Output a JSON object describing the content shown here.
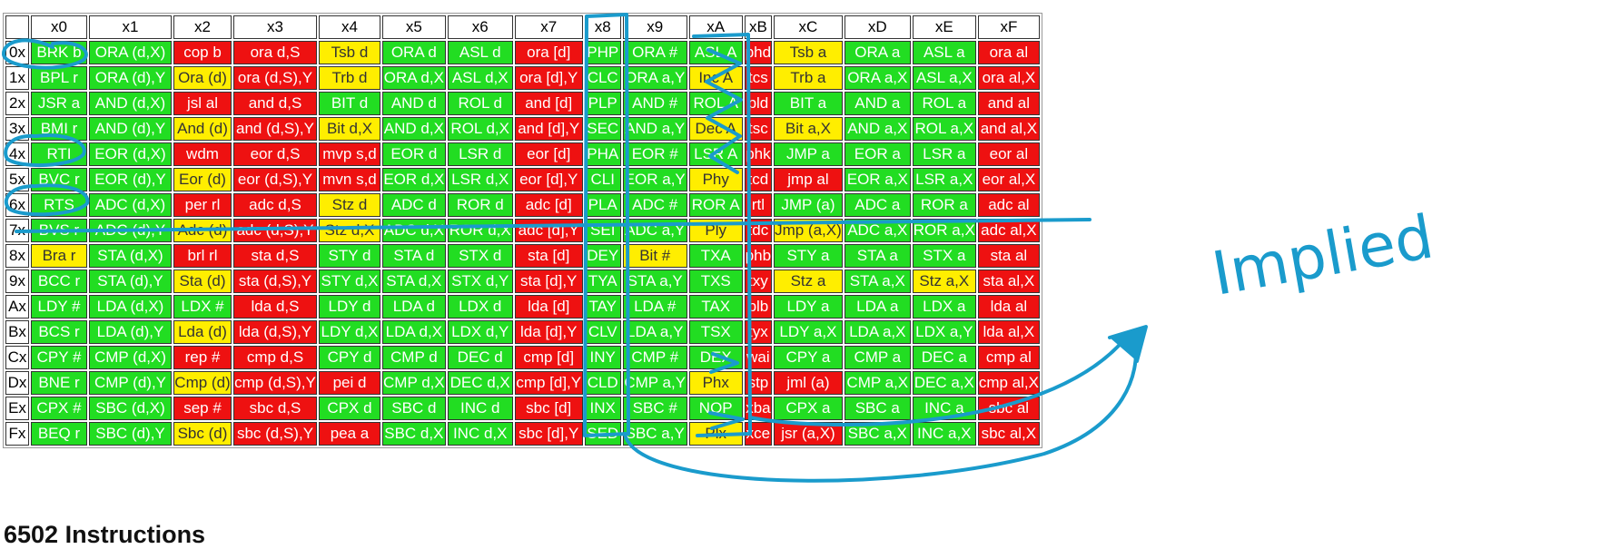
{
  "header": [
    "",
    "x0",
    "x1",
    "x2",
    "x3",
    "x4",
    "x5",
    "x6",
    "x7",
    "x8",
    "x9",
    "xA",
    "xB",
    "xC",
    "xD",
    "xE",
    "xF"
  ],
  "colors": {
    "green": "#22dd22",
    "yellow": "#ffee00",
    "red": "#ee1111",
    "annotation_ink": "#1a9bcc"
  },
  "rows": [
    {
      "label": "0x",
      "cells": [
        [
          "BRK b",
          "g"
        ],
        [
          "ORA (d,X)",
          "g"
        ],
        [
          "cop b",
          "r"
        ],
        [
          "ora d,S",
          "r"
        ],
        [
          "Tsb d",
          "y"
        ],
        [
          "ORA d",
          "g"
        ],
        [
          "ASL d",
          "g"
        ],
        [
          "ora [d]",
          "r"
        ],
        [
          "PHP",
          "g"
        ],
        [
          "ORA #",
          "g"
        ],
        [
          "ASL A",
          "g"
        ],
        [
          "phd",
          "r"
        ],
        [
          "Tsb a",
          "y"
        ],
        [
          "ORA a",
          "g"
        ],
        [
          "ASL a",
          "g"
        ],
        [
          "ora al",
          "r"
        ]
      ]
    },
    {
      "label": "1x",
      "cells": [
        [
          "BPL r",
          "g"
        ],
        [
          "ORA (d),Y",
          "g"
        ],
        [
          "Ora (d)",
          "y"
        ],
        [
          "ora (d,S),Y",
          "r"
        ],
        [
          "Trb d",
          "y"
        ],
        [
          "ORA d,X",
          "g"
        ],
        [
          "ASL d,X",
          "g"
        ],
        [
          "ora [d],Y",
          "r"
        ],
        [
          "CLC",
          "g"
        ],
        [
          "ORA a,Y",
          "g"
        ],
        [
          "Inc A",
          "y"
        ],
        [
          "tcs",
          "r"
        ],
        [
          "Trb a",
          "y"
        ],
        [
          "ORA a,X",
          "g"
        ],
        [
          "ASL a,X",
          "g"
        ],
        [
          "ora al,X",
          "r"
        ]
      ]
    },
    {
      "label": "2x",
      "cells": [
        [
          "JSR a",
          "g"
        ],
        [
          "AND (d,X)",
          "g"
        ],
        [
          "jsl al",
          "r"
        ],
        [
          "and d,S",
          "r"
        ],
        [
          "BIT d",
          "g"
        ],
        [
          "AND d",
          "g"
        ],
        [
          "ROL d",
          "g"
        ],
        [
          "and [d]",
          "r"
        ],
        [
          "PLP",
          "g"
        ],
        [
          "AND #",
          "g"
        ],
        [
          "ROL A",
          "g"
        ],
        [
          "pld",
          "r"
        ],
        [
          "BIT a",
          "g"
        ],
        [
          "AND a",
          "g"
        ],
        [
          "ROL a",
          "g"
        ],
        [
          "and al",
          "r"
        ]
      ]
    },
    {
      "label": "3x",
      "cells": [
        [
          "BMI r",
          "g"
        ],
        [
          "AND (d),Y",
          "g"
        ],
        [
          "And (d)",
          "y"
        ],
        [
          "and (d,S),Y",
          "r"
        ],
        [
          "Bit d,X",
          "y"
        ],
        [
          "AND d,X",
          "g"
        ],
        [
          "ROL d,X",
          "g"
        ],
        [
          "and [d],Y",
          "r"
        ],
        [
          "SEC",
          "g"
        ],
        [
          "AND a,Y",
          "g"
        ],
        [
          "Dec A",
          "y"
        ],
        [
          "tsc",
          "r"
        ],
        [
          "Bit a,X",
          "y"
        ],
        [
          "AND a,X",
          "g"
        ],
        [
          "ROL a,X",
          "g"
        ],
        [
          "and al,X",
          "r"
        ]
      ]
    },
    {
      "label": "4x",
      "cells": [
        [
          "RTI",
          "g"
        ],
        [
          "EOR (d,X)",
          "g"
        ],
        [
          "wdm",
          "r"
        ],
        [
          "eor d,S",
          "r"
        ],
        [
          "mvp s,d",
          "r"
        ],
        [
          "EOR d",
          "g"
        ],
        [
          "LSR d",
          "g"
        ],
        [
          "eor [d]",
          "r"
        ],
        [
          "PHA",
          "g"
        ],
        [
          "EOR #",
          "g"
        ],
        [
          "LSR A",
          "g"
        ],
        [
          "phk",
          "r"
        ],
        [
          "JMP a",
          "g"
        ],
        [
          "EOR a",
          "g"
        ],
        [
          "LSR a",
          "g"
        ],
        [
          "eor al",
          "r"
        ]
      ]
    },
    {
      "label": "5x",
      "cells": [
        [
          "BVC r",
          "g"
        ],
        [
          "EOR (d),Y",
          "g"
        ],
        [
          "Eor (d)",
          "y"
        ],
        [
          "eor (d,S),Y",
          "r"
        ],
        [
          "mvn s,d",
          "r"
        ],
        [
          "EOR d,X",
          "g"
        ],
        [
          "LSR d,X",
          "g"
        ],
        [
          "eor [d],Y",
          "r"
        ],
        [
          "CLI",
          "g"
        ],
        [
          "EOR a,Y",
          "g"
        ],
        [
          "Phy",
          "y"
        ],
        [
          "tcd",
          "r"
        ],
        [
          "jmp al",
          "r"
        ],
        [
          "EOR a,X",
          "g"
        ],
        [
          "LSR a,X",
          "g"
        ],
        [
          "eor al,X",
          "r"
        ]
      ]
    },
    {
      "label": "6x",
      "cells": [
        [
          "RTS",
          "g"
        ],
        [
          "ADC (d,X)",
          "g"
        ],
        [
          "per rl",
          "r"
        ],
        [
          "adc d,S",
          "r"
        ],
        [
          "Stz d",
          "y"
        ],
        [
          "ADC d",
          "g"
        ],
        [
          "ROR d",
          "g"
        ],
        [
          "adc [d]",
          "r"
        ],
        [
          "PLA",
          "g"
        ],
        [
          "ADC #",
          "g"
        ],
        [
          "ROR A",
          "g"
        ],
        [
          "rtl",
          "r"
        ],
        [
          "JMP (a)",
          "g"
        ],
        [
          "ADC a",
          "g"
        ],
        [
          "ROR a",
          "g"
        ],
        [
          "adc al",
          "r"
        ]
      ]
    },
    {
      "label": "7x",
      "cells": [
        [
          "BVS r",
          "g"
        ],
        [
          "ADC (d),Y",
          "g"
        ],
        [
          "Adc (d)",
          "y"
        ],
        [
          "adc (d,S),Y",
          "r"
        ],
        [
          "Stz d,X",
          "y"
        ],
        [
          "ADC d,X",
          "g"
        ],
        [
          "ROR d,X",
          "g"
        ],
        [
          "adc [d],Y",
          "r"
        ],
        [
          "SEI",
          "g"
        ],
        [
          "ADC a,Y",
          "g"
        ],
        [
          "Ply",
          "y"
        ],
        [
          "tdc",
          "r"
        ],
        [
          "Jmp (a,X)",
          "y"
        ],
        [
          "ADC a,X",
          "g"
        ],
        [
          "ROR a,X",
          "g"
        ],
        [
          "adc al,X",
          "r"
        ]
      ]
    },
    {
      "label": "8x",
      "cells": [
        [
          "Bra r",
          "y"
        ],
        [
          "STA (d,X)",
          "g"
        ],
        [
          "brl rl",
          "r"
        ],
        [
          "sta d,S",
          "r"
        ],
        [
          "STY d",
          "g"
        ],
        [
          "STA d",
          "g"
        ],
        [
          "STX d",
          "g"
        ],
        [
          "sta [d]",
          "r"
        ],
        [
          "DEY",
          "g"
        ],
        [
          "Bit #",
          "y"
        ],
        [
          "TXA",
          "g"
        ],
        [
          "phb",
          "r"
        ],
        [
          "STY a",
          "g"
        ],
        [
          "STA a",
          "g"
        ],
        [
          "STX a",
          "g"
        ],
        [
          "sta al",
          "r"
        ]
      ]
    },
    {
      "label": "9x",
      "cells": [
        [
          "BCC r",
          "g"
        ],
        [
          "STA (d),Y",
          "g"
        ],
        [
          "Sta (d)",
          "y"
        ],
        [
          "sta (d,S),Y",
          "r"
        ],
        [
          "STY d,X",
          "g"
        ],
        [
          "STA d,X",
          "g"
        ],
        [
          "STX d,Y",
          "g"
        ],
        [
          "sta [d],Y",
          "r"
        ],
        [
          "TYA",
          "g"
        ],
        [
          "STA a,Y",
          "g"
        ],
        [
          "TXS",
          "g"
        ],
        [
          "txy",
          "r"
        ],
        [
          "Stz a",
          "y"
        ],
        [
          "STA a,X",
          "g"
        ],
        [
          "Stz a,X",
          "y"
        ],
        [
          "sta al,X",
          "r"
        ]
      ]
    },
    {
      "label": "Ax",
      "cells": [
        [
          "LDY #",
          "g"
        ],
        [
          "LDA (d,X)",
          "g"
        ],
        [
          "LDX #",
          "g"
        ],
        [
          "lda d,S",
          "r"
        ],
        [
          "LDY d",
          "g"
        ],
        [
          "LDA d",
          "g"
        ],
        [
          "LDX d",
          "g"
        ],
        [
          "lda [d]",
          "r"
        ],
        [
          "TAY",
          "g"
        ],
        [
          "LDA #",
          "g"
        ],
        [
          "TAX",
          "g"
        ],
        [
          "plb",
          "r"
        ],
        [
          "LDY a",
          "g"
        ],
        [
          "LDA a",
          "g"
        ],
        [
          "LDX a",
          "g"
        ],
        [
          "lda al",
          "r"
        ]
      ]
    },
    {
      "label": "Bx",
      "cells": [
        [
          "BCS r",
          "g"
        ],
        [
          "LDA (d),Y",
          "g"
        ],
        [
          "Lda (d)",
          "y"
        ],
        [
          "lda (d,S),Y",
          "r"
        ],
        [
          "LDY d,X",
          "g"
        ],
        [
          "LDA d,X",
          "g"
        ],
        [
          "LDX d,Y",
          "g"
        ],
        [
          "lda [d],Y",
          "r"
        ],
        [
          "CLV",
          "g"
        ],
        [
          "LDA a,Y",
          "g"
        ],
        [
          "TSX",
          "g"
        ],
        [
          "tyx",
          "r"
        ],
        [
          "LDY a,X",
          "g"
        ],
        [
          "LDA a,X",
          "g"
        ],
        [
          "LDX a,Y",
          "g"
        ],
        [
          "lda al,X",
          "r"
        ]
      ]
    },
    {
      "label": "Cx",
      "cells": [
        [
          "CPY #",
          "g"
        ],
        [
          "CMP (d,X)",
          "g"
        ],
        [
          "rep #",
          "r"
        ],
        [
          "cmp d,S",
          "r"
        ],
        [
          "CPY d",
          "g"
        ],
        [
          "CMP d",
          "g"
        ],
        [
          "DEC d",
          "g"
        ],
        [
          "cmp [d]",
          "r"
        ],
        [
          "INY",
          "g"
        ],
        [
          "CMP #",
          "g"
        ],
        [
          "DEX",
          "g"
        ],
        [
          "wai",
          "r"
        ],
        [
          "CPY a",
          "g"
        ],
        [
          "CMP a",
          "g"
        ],
        [
          "DEC a",
          "g"
        ],
        [
          "cmp al",
          "r"
        ]
      ]
    },
    {
      "label": "Dx",
      "cells": [
        [
          "BNE r",
          "g"
        ],
        [
          "CMP (d),Y",
          "g"
        ],
        [
          "Cmp (d)",
          "y"
        ],
        [
          "cmp (d,S),Y",
          "r"
        ],
        [
          "pei d",
          "r"
        ],
        [
          "CMP d,X",
          "g"
        ],
        [
          "DEC d,X",
          "g"
        ],
        [
          "cmp [d],Y",
          "r"
        ],
        [
          "CLD",
          "g"
        ],
        [
          "CMP a,Y",
          "g"
        ],
        [
          "Phx",
          "y"
        ],
        [
          "stp",
          "r"
        ],
        [
          "jml (a)",
          "r"
        ],
        [
          "CMP a,X",
          "g"
        ],
        [
          "DEC a,X",
          "g"
        ],
        [
          "cmp al,X",
          "r"
        ]
      ]
    },
    {
      "label": "Ex",
      "cells": [
        [
          "CPX #",
          "g"
        ],
        [
          "SBC (d,X)",
          "g"
        ],
        [
          "sep #",
          "r"
        ],
        [
          "sbc d,S",
          "r"
        ],
        [
          "CPX d",
          "g"
        ],
        [
          "SBC d",
          "g"
        ],
        [
          "INC d",
          "g"
        ],
        [
          "sbc [d]",
          "r"
        ],
        [
          "INX",
          "g"
        ],
        [
          "SBC #",
          "g"
        ],
        [
          "NOP",
          "g"
        ],
        [
          "xba",
          "r"
        ],
        [
          "CPX a",
          "g"
        ],
        [
          "SBC a",
          "g"
        ],
        [
          "INC a",
          "g"
        ],
        [
          "sbc al",
          "r"
        ]
      ]
    },
    {
      "label": "Fx",
      "cells": [
        [
          "BEQ r",
          "g"
        ],
        [
          "SBC (d),Y",
          "g"
        ],
        [
          "Sbc (d)",
          "y"
        ],
        [
          "sbc (d,S),Y",
          "r"
        ],
        [
          "pea a",
          "r"
        ],
        [
          "SBC d,X",
          "g"
        ],
        [
          "INC d,X",
          "g"
        ],
        [
          "sbc [d],Y",
          "r"
        ],
        [
          "SED",
          "g"
        ],
        [
          "SBC a,Y",
          "g"
        ],
        [
          "Plx",
          "y"
        ],
        [
          "xce",
          "r"
        ],
        [
          "jsr (a,X)",
          "r"
        ],
        [
          "SBC a,X",
          "g"
        ],
        [
          "INC a,X",
          "g"
        ],
        [
          "sbc al,X",
          "r"
        ]
      ]
    }
  ],
  "annotation": {
    "text": "Implied"
  },
  "page_title": "6502 Instructions"
}
